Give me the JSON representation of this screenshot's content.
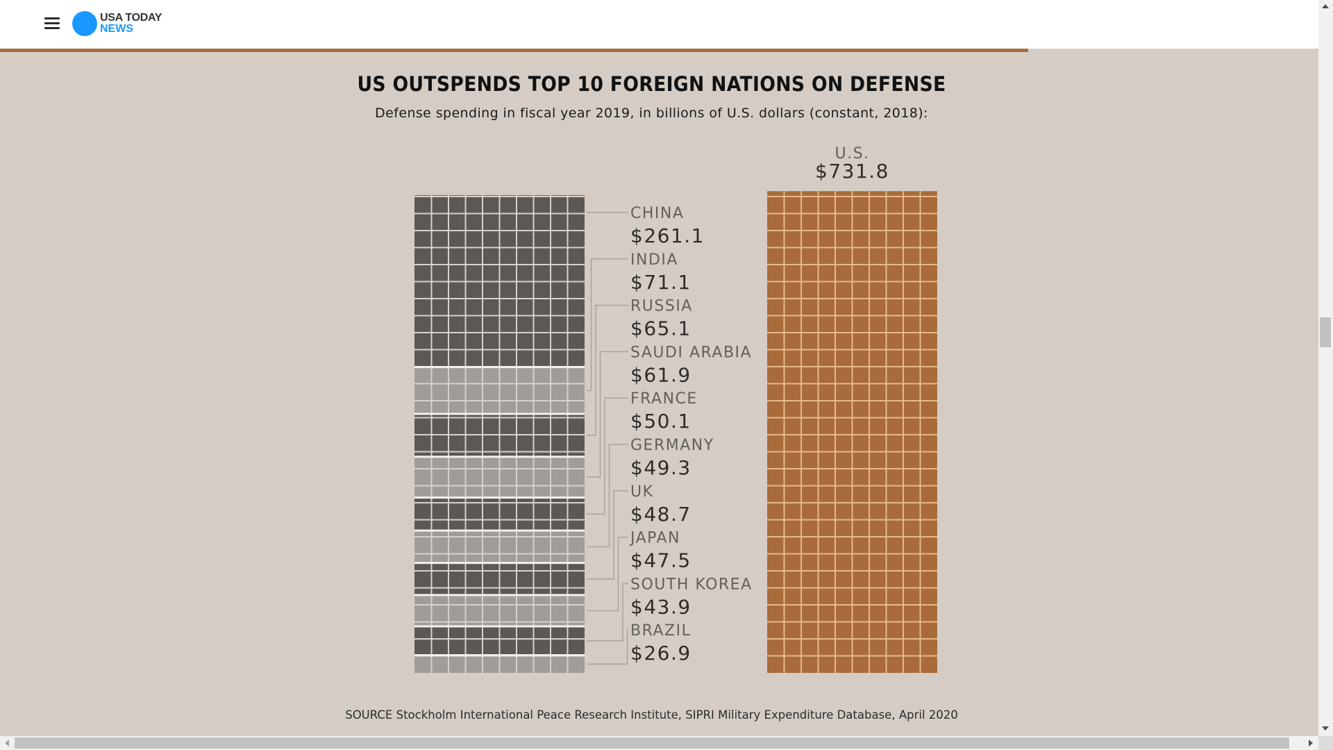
{
  "header": {
    "menu_icon": "hamburger-menu-icon",
    "logo_icon": "blue-circle-logo-icon",
    "logo_line1": "USA TODAY",
    "logo_line2": "NEWS",
    "logo_color": "#1a98ff"
  },
  "reading_progress": {
    "fraction": 0.78,
    "color": "#a96b3c"
  },
  "chart_data": {
    "type": "waffle",
    "title": "US OUTSPENDS TOP 10 FOREIGN NATIONS ON DEFENSE",
    "subtitle": "Defense spending in fiscal year 2019, in billions of U.S. dollars (constant, 2018):",
    "units": "billions of U.S. dollars",
    "columns_per_row": 10,
    "foreign": [
      {
        "name": "CHINA",
        "label": "$261.1",
        "value": 261.1
      },
      {
        "name": "INDIA",
        "label": "$71.1",
        "value": 71.1
      },
      {
        "name": "RUSSIA",
        "label": "$65.1",
        "value": 65.1
      },
      {
        "name": "SAUDI ARABIA",
        "label": "$61.9",
        "value": 61.9
      },
      {
        "name": "FRANCE",
        "label": "$50.1",
        "value": 50.1
      },
      {
        "name": "GERMANY",
        "label": "$49.3",
        "value": 49.3
      },
      {
        "name": "UK",
        "label": "$48.7",
        "value": 48.7
      },
      {
        "name": "JAPAN",
        "label": "$47.5",
        "value": 47.5
      },
      {
        "name": "SOUTH KOREA",
        "label": "$43.9",
        "value": 43.9
      },
      {
        "name": "BRAZIL",
        "label": "$26.9",
        "value": 26.9
      }
    ],
    "us": {
      "name": "U.S.",
      "label": "$731.8",
      "value": 731.8
    },
    "colors": {
      "dark": "#5b5856",
      "light": "#a29c98",
      "us": "#a96b3c",
      "us_grid": "#e8b88c",
      "grid_line": "#d8d2cc",
      "connector": "#a8a29d"
    },
    "source": "SOURCE Stockholm International Peace Research Institute, SIPRI Military Expenditure Database, April 2020"
  }
}
